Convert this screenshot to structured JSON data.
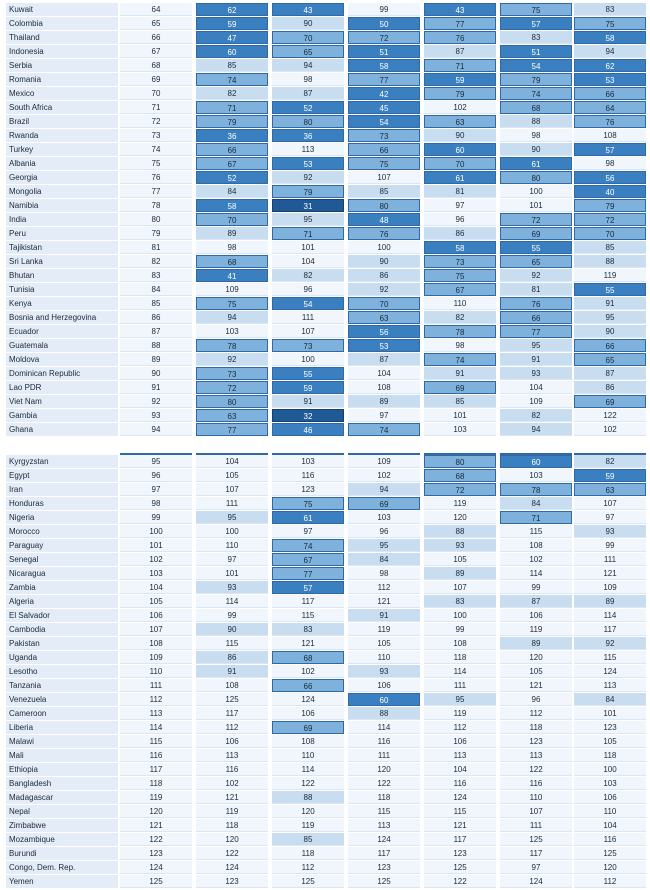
{
  "shading_colors": {
    "name_bg": "#e4ecf7",
    "level0": "#f1f6fc",
    "level1": "#c9ddf0",
    "level2": "#7eb2dc",
    "level3": "#3a7fc0",
    "level4": "#1f5a96",
    "text_dark": "#1b2a3a",
    "text_light": "#ffffff"
  },
  "top_rows": [
    {
      "country": "Kuwait",
      "values": [
        "64",
        "62",
        "43",
        "99",
        "43",
        "75",
        "83"
      ]
    },
    {
      "country": "Colombia",
      "values": [
        "65",
        "59",
        "90",
        "50",
        "77",
        "57",
        "75"
      ]
    },
    {
      "country": "Thailand",
      "values": [
        "66",
        "47",
        "70",
        "72",
        "76",
        "83",
        "58"
      ]
    },
    {
      "country": "Indonesia",
      "values": [
        "67",
        "60",
        "65",
        "51",
        "87",
        "51",
        "94"
      ]
    },
    {
      "country": "Serbia",
      "values": [
        "68",
        "85",
        "94",
        "58",
        "71",
        "54",
        "62"
      ]
    },
    {
      "country": "Romania",
      "values": [
        "69",
        "74",
        "98",
        "77",
        "59",
        "79",
        "53"
      ]
    },
    {
      "country": "Mexico",
      "values": [
        "70",
        "82",
        "87",
        "42",
        "79",
        "74",
        "66"
      ]
    },
    {
      "country": "South Africa",
      "values": [
        "71",
        "71",
        "52",
        "45",
        "102",
        "68",
        "64"
      ]
    },
    {
      "country": "Brazil",
      "values": [
        "72",
        "79",
        "80",
        "54",
        "63",
        "88",
        "76"
      ]
    },
    {
      "country": "Rwanda",
      "values": [
        "73",
        "36",
        "36",
        "73",
        "90",
        "98",
        "108"
      ]
    },
    {
      "country": "Turkey",
      "values": [
        "74",
        "66",
        "113",
        "66",
        "60",
        "90",
        "57"
      ]
    },
    {
      "country": "Albania",
      "values": [
        "75",
        "67",
        "53",
        "75",
        "70",
        "61",
        "98"
      ]
    },
    {
      "country": "Georgia",
      "values": [
        "76",
        "52",
        "92",
        "107",
        "61",
        "80",
        "56"
      ]
    },
    {
      "country": "Mongolia",
      "values": [
        "77",
        "84",
        "79",
        "85",
        "81",
        "100",
        "40"
      ]
    },
    {
      "country": "Namibia",
      "values": [
        "78",
        "58",
        "31",
        "80",
        "97",
        "101",
        "79"
      ]
    },
    {
      "country": "India",
      "values": [
        "80",
        "70",
        "95",
        "48",
        "96",
        "72",
        "72"
      ]
    },
    {
      "country": "Peru",
      "values": [
        "79",
        "89",
        "71",
        "76",
        "86",
        "69",
        "70"
      ]
    },
    {
      "country": "Tajikistan",
      "values": [
        "81",
        "98",
        "101",
        "100",
        "58",
        "55",
        "85"
      ]
    },
    {
      "country": "Sri Lanka",
      "values": [
        "82",
        "68",
        "104",
        "90",
        "73",
        "65",
        "88"
      ]
    },
    {
      "country": "Bhutan",
      "values": [
        "83",
        "41",
        "82",
        "86",
        "75",
        "92",
        "119"
      ]
    },
    {
      "country": "Tunisia",
      "values": [
        "84",
        "109",
        "96",
        "92",
        "67",
        "81",
        "55"
      ]
    },
    {
      "country": "Kenya",
      "values": [
        "85",
        "75",
        "54",
        "70",
        "110",
        "76",
        "91"
      ]
    },
    {
      "country": "Bosnia and Herzegovina",
      "values": [
        "86",
        "94",
        "111",
        "63",
        "82",
        "66",
        "95"
      ]
    },
    {
      "country": "Ecuador",
      "values": [
        "87",
        "103",
        "107",
        "56",
        "78",
        "77",
        "90"
      ]
    },
    {
      "country": "Guatemala",
      "values": [
        "88",
        "78",
        "73",
        "53",
        "98",
        "95",
        "66"
      ]
    },
    {
      "country": "Moldova",
      "values": [
        "89",
        "92",
        "100",
        "87",
        "74",
        "91",
        "65"
      ]
    },
    {
      "country": "Dominican Republic",
      "values": [
        "90",
        "73",
        "55",
        "104",
        "91",
        "93",
        "87"
      ]
    },
    {
      "country": "Lao PDR",
      "values": [
        "91",
        "72",
        "59",
        "108",
        "69",
        "104",
        "86"
      ]
    },
    {
      "country": "Viet Nam",
      "values": [
        "92",
        "80",
        "91",
        "89",
        "85",
        "109",
        "69"
      ]
    },
    {
      "country": "Gambia",
      "values": [
        "93",
        "63",
        "32",
        "97",
        "101",
        "82",
        "122"
      ]
    },
    {
      "country": "Ghana",
      "values": [
        "94",
        "77",
        "46",
        "74",
        "103",
        "94",
        "102"
      ]
    }
  ],
  "bottom_rows": [
    {
      "country": "Kyrgyzstan",
      "values": [
        "95",
        "104",
        "103",
        "109",
        "80",
        "60",
        "82"
      ]
    },
    {
      "country": "Egypt",
      "values": [
        "96",
        "105",
        "116",
        "102",
        "68",
        "103",
        "59"
      ]
    },
    {
      "country": "Iran",
      "values": [
        "97",
        "107",
        "123",
        "94",
        "72",
        "78",
        "63"
      ]
    },
    {
      "country": "Honduras",
      "values": [
        "98",
        "111",
        "75",
        "69",
        "119",
        "84",
        "107"
      ]
    },
    {
      "country": "Nigeria",
      "values": [
        "99",
        "95",
        "61",
        "103",
        "120",
        "71",
        "97"
      ]
    },
    {
      "country": "Morocco",
      "values": [
        "100",
        "100",
        "97",
        "96",
        "88",
        "115",
        "93"
      ]
    },
    {
      "country": "Paraguay",
      "values": [
        "101",
        "110",
        "74",
        "95",
        "93",
        "108",
        "99"
      ]
    },
    {
      "country": "Senegal",
      "values": [
        "102",
        "97",
        "67",
        "84",
        "105",
        "102",
        "111"
      ]
    },
    {
      "country": "Nicaragua",
      "values": [
        "103",
        "101",
        "77",
        "98",
        "89",
        "114",
        "121"
      ]
    },
    {
      "country": "Zambia",
      "values": [
        "104",
        "93",
        "57",
        "112",
        "107",
        "99",
        "109"
      ]
    },
    {
      "country": "Algeria",
      "values": [
        "105",
        "114",
        "117",
        "121",
        "83",
        "87",
        "89"
      ]
    },
    {
      "country": "El Salvador",
      "values": [
        "106",
        "99",
        "115",
        "91",
        "100",
        "106",
        "114"
      ]
    },
    {
      "country": "Cambodia",
      "values": [
        "107",
        "90",
        "83",
        "119",
        "99",
        "119",
        "117"
      ]
    },
    {
      "country": "Pakistan",
      "values": [
        "108",
        "115",
        "121",
        "105",
        "108",
        "89",
        "92"
      ]
    },
    {
      "country": "Uganda",
      "values": [
        "109",
        "86",
        "68",
        "110",
        "118",
        "120",
        "115"
      ]
    },
    {
      "country": "Lesotho",
      "values": [
        "110",
        "91",
        "102",
        "93",
        "114",
        "105",
        "124"
      ]
    },
    {
      "country": "Tanzania",
      "values": [
        "111",
        "108",
        "66",
        "106",
        "111",
        "121",
        "113"
      ]
    },
    {
      "country": "Venezuela",
      "values": [
        "112",
        "125",
        "124",
        "60",
        "95",
        "96",
        "84"
      ]
    },
    {
      "country": "Cameroon",
      "values": [
        "113",
        "117",
        "106",
        "88",
        "119",
        "112",
        "101"
      ]
    },
    {
      "country": "Liberia",
      "values": [
        "114",
        "112",
        "69",
        "114",
        "112",
        "118",
        "123"
      ]
    },
    {
      "country": "Malawi",
      "values": [
        "115",
        "106",
        "108",
        "116",
        "106",
        "123",
        "105"
      ]
    },
    {
      "country": "Mali",
      "values": [
        "116",
        "113",
        "110",
        "111",
        "113",
        "113",
        "118"
      ]
    },
    {
      "country": "Ethiopia",
      "values": [
        "117",
        "116",
        "114",
        "120",
        "104",
        "122",
        "100"
      ]
    },
    {
      "country": "Bangladesh",
      "values": [
        "118",
        "102",
        "122",
        "122",
        "116",
        "116",
        "103"
      ]
    },
    {
      "country": "Madagascar",
      "values": [
        "119",
        "121",
        "88",
        "118",
        "124",
        "110",
        "106"
      ]
    },
    {
      "country": "Nepal",
      "values": [
        "120",
        "119",
        "120",
        "115",
        "115",
        "107",
        "110"
      ]
    },
    {
      "country": "Zimbabwe",
      "values": [
        "121",
        "118",
        "119",
        "113",
        "121",
        "111",
        "104"
      ]
    },
    {
      "country": "Mozambique",
      "values": [
        "122",
        "120",
        "85",
        "124",
        "117",
        "125",
        "116"
      ]
    },
    {
      "country": "Burundi",
      "values": [
        "123",
        "122",
        "118",
        "117",
        "123",
        "117",
        "125"
      ]
    },
    {
      "country": "Congo, Dem. Rep.",
      "values": [
        "124",
        "124",
        "112",
        "123",
        "125",
        "97",
        "120"
      ]
    },
    {
      "country": "Yemen",
      "values": [
        "125",
        "123",
        "125",
        "125",
        "122",
        "124",
        "112"
      ]
    }
  ]
}
